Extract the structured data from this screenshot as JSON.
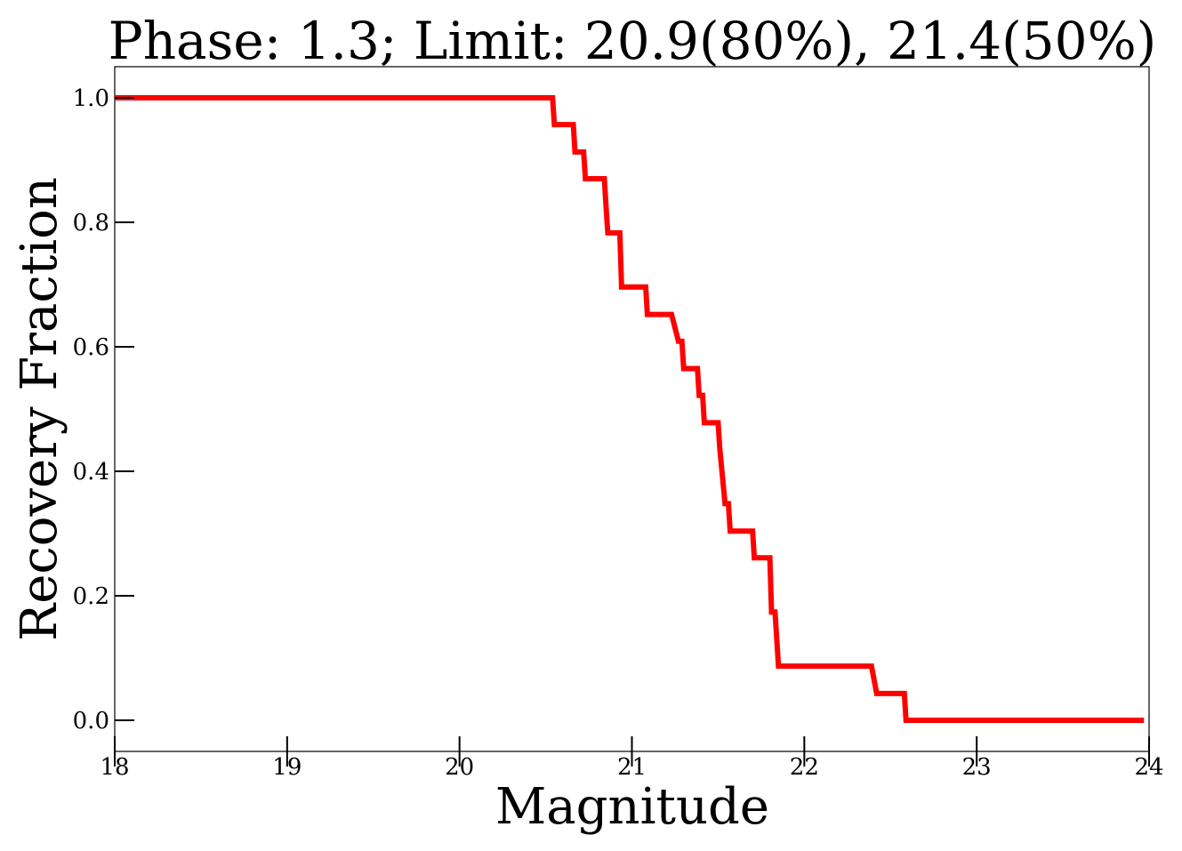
{
  "chart_data": {
    "type": "line",
    "title": "Phase: 1.3; Limit: 20.9(80%), 21.4(50%)",
    "xlabel": "Magnitude",
    "ylabel": "Recovery Fraction",
    "xlim": [
      18,
      24
    ],
    "ylim": [
      -0.05,
      1.05
    ],
    "xticks": [
      18,
      19,
      20,
      21,
      22,
      23,
      24
    ],
    "xtick_labels": [
      "18",
      "19",
      "20",
      "21",
      "22",
      "23",
      "24"
    ],
    "yticks": [
      0.0,
      0.2,
      0.4,
      0.6,
      0.8,
      1.0
    ],
    "ytick_labels": [
      "0.0",
      "0.2",
      "0.4",
      "0.6",
      "0.8",
      "1.0"
    ],
    "grid": false,
    "series": [
      {
        "color": "#ff0000",
        "x": [
          18.0,
          20.54,
          20.55,
          20.66,
          20.67,
          20.72,
          20.73,
          20.84,
          20.85,
          20.86,
          20.93,
          20.94,
          21.08,
          21.09,
          21.23,
          21.27,
          21.29,
          21.3,
          21.38,
          21.39,
          21.41,
          21.42,
          21.5,
          21.51,
          21.54,
          21.56,
          21.57,
          21.7,
          21.71,
          21.8,
          21.81,
          21.83,
          21.85,
          22.39,
          22.42,
          22.58,
          22.59,
          23.97
        ],
        "y": [
          1.0,
          1.0,
          0.957,
          0.957,
          0.913,
          0.913,
          0.87,
          0.87,
          0.826,
          0.783,
          0.783,
          0.696,
          0.696,
          0.652,
          0.652,
          0.609,
          0.609,
          0.565,
          0.565,
          0.522,
          0.522,
          0.478,
          0.478,
          0.435,
          0.348,
          0.348,
          0.304,
          0.304,
          0.261,
          0.261,
          0.174,
          0.174,
          0.087,
          0.087,
          0.043,
          0.043,
          0.0,
          0.0
        ]
      }
    ]
  }
}
